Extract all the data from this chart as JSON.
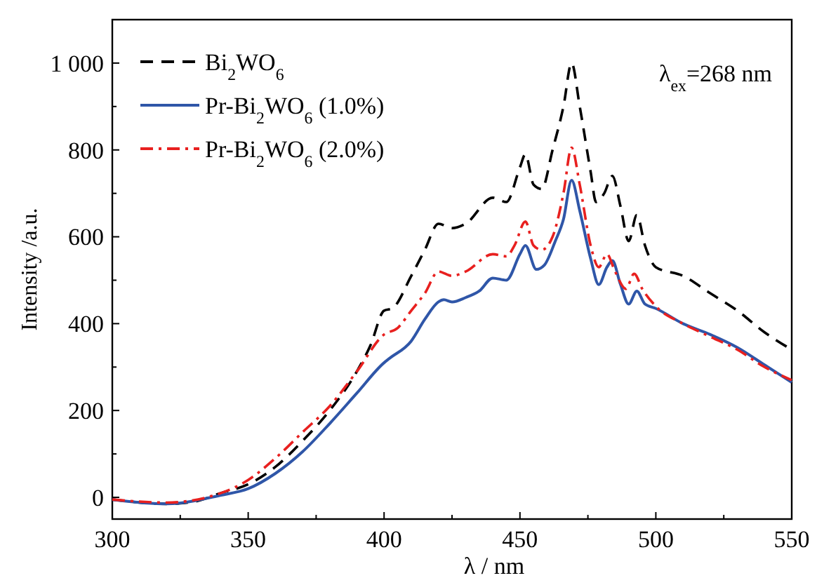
{
  "chart_data": {
    "type": "line",
    "xlabel": "λ / nm",
    "ylabel": "Intensity /a.u.",
    "xlim": [
      300,
      550
    ],
    "ylim": [
      -50,
      1100
    ],
    "xticks": [
      300,
      {
        "value": 325,
        "label": null
      },
      350,
      {
        "value": 375,
        "label": null
      },
      400,
      {
        "value": 425,
        "label": null
      },
      450,
      {
        "value": 475,
        "label": null
      },
      500,
      {
        "value": 525,
        "label": null
      },
      550
    ],
    "yticks": [
      0,
      {
        "value": 100,
        "label": null
      },
      200,
      {
        "value": 300,
        "label": null
      },
      400,
      {
        "value": 500,
        "label": null
      },
      600,
      {
        "value": 700,
        "label": null
      },
      800,
      {
        "value": 900,
        "label": null
      },
      {
        "value": 1000,
        "label": "1 000"
      }
    ],
    "grid": false,
    "legend": "top left",
    "annotations": [
      "λ$_{ex}$=268 nm"
    ],
    "series": [
      {
        "name": "Bi$_{2}$WO$_{6}$",
        "color": "#000000",
        "line_style": "dashed",
        "x": [
          300,
          320,
          330,
          340,
          350,
          360,
          370,
          380,
          390,
          395,
          400,
          403,
          410,
          415,
          420,
          425,
          430,
          440,
          445,
          450,
          452,
          455,
          458,
          462,
          466,
          469,
          472,
          476,
          478,
          481,
          484,
          487,
          490,
          493,
          496,
          500,
          510,
          520,
          530,
          540,
          550
        ],
        "values": [
          -5,
          -15,
          -10,
          10,
          30,
          70,
          130,
          200,
          290,
          350,
          430,
          435,
          510,
          570,
          630,
          620,
          630,
          690,
          680,
          760,
          790,
          720,
          710,
          800,
          900,
          1000,
          900,
          750,
          680,
          700,
          740,
          670,
          590,
          650,
          580,
          530,
          510,
          470,
          430,
          380,
          340
        ]
      },
      {
        "name": "Pr-Bi$_{2}$WO$_{6}$ (1.0%)",
        "color": "#2f56a8",
        "line_style": "solid",
        "x": [
          300,
          320,
          340,
          350,
          360,
          370,
          380,
          390,
          400,
          402,
          410,
          415,
          420,
          422,
          425,
          430,
          435,
          440,
          445,
          450,
          452,
          456,
          459,
          463,
          466,
          469,
          472,
          476,
          479,
          482,
          484,
          487,
          490,
          493,
          496,
          500,
          510,
          520,
          530,
          540,
          550
        ],
        "values": [
          -5,
          -15,
          5,
          20,
          55,
          105,
          170,
          240,
          310,
          320,
          360,
          410,
          450,
          455,
          450,
          460,
          475,
          505,
          500,
          560,
          580,
          525,
          535,
          590,
          640,
          730,
          660,
          550,
          490,
          530,
          545,
          490,
          445,
          475,
          445,
          435,
          400,
          375,
          345,
          305,
          265
        ]
      },
      {
        "name": "Pr-Bi$_{2}$WO$_{6}$ (2.0%)",
        "color": "#e8201f",
        "line_style": "dashdot",
        "x": [
          300,
          320,
          340,
          350,
          360,
          370,
          380,
          390,
          400,
          405,
          410,
          415,
          420,
          425,
          430,
          440,
          445,
          448,
          452,
          455,
          458,
          462,
          466,
          469,
          472,
          476,
          479,
          482,
          485,
          489,
          492,
          495,
          500,
          510,
          520,
          530,
          540,
          550
        ],
        "values": [
          -5,
          -12,
          10,
          40,
          90,
          150,
          210,
          290,
          375,
          390,
          430,
          470,
          520,
          510,
          520,
          560,
          555,
          580,
          635,
          580,
          570,
          600,
          700,
          805,
          720,
          580,
          530,
          560,
          520,
          480,
          515,
          480,
          440,
          400,
          370,
          340,
          300,
          270
        ]
      }
    ]
  }
}
